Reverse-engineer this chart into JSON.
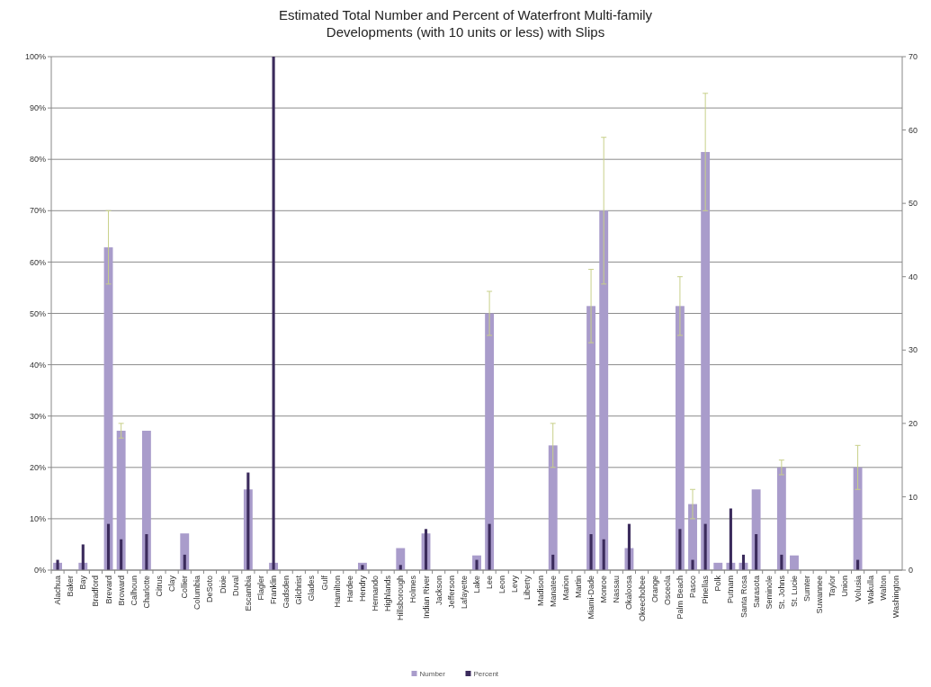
{
  "chart_data": {
    "type": "bar",
    "title": "Estimated Total Number and Percent of Waterfront Multi-family Developments (with 10 units or less) with Slips",
    "categories": [
      "Alachua",
      "Baker",
      "Bay",
      "Bradford",
      "Brevard",
      "Broward",
      "Calhoun",
      "Charlotte",
      "Citrus",
      "Clay",
      "Collier",
      "Columbia",
      "DeSoto",
      "Dixie",
      "Duval",
      "Escambia",
      "Flagler",
      "Franklin",
      "Gadsden",
      "Gilchrist",
      "Glades",
      "Gulf",
      "Hamilton",
      "Hardee",
      "Hendry",
      "Hernando",
      "Highlands",
      "Hillsborough",
      "Holmes",
      "Indian River",
      "Jackson",
      "Jefferson",
      "Lafayette",
      "Lake",
      "Lee",
      "Leon",
      "Levy",
      "Liberty",
      "Madison",
      "Manatee",
      "Marion",
      "Martin",
      "Miami-Dade",
      "Monroe",
      "Nassau",
      "Okaloosa",
      "Okeechobee",
      "Orange",
      "Osceola",
      "Palm Beach",
      "Pasco",
      "Pinellas",
      "Polk",
      "Putnam",
      "Santa Rosa",
      "Sarasota",
      "Seminole",
      "St. Johns",
      "St. Lucie",
      "Sumter",
      "Suwannee",
      "Taylor",
      "Union",
      "Volusia",
      "Wakulla",
      "Walton",
      "Washington"
    ],
    "series": [
      {
        "name": "Number",
        "color": "#a99ccb",
        "axis": "y2",
        "values": [
          1,
          0,
          1,
          0,
          44,
          19,
          0,
          19,
          0,
          0,
          5,
          0,
          0,
          0,
          0,
          11,
          0,
          1,
          0,
          0,
          0,
          0,
          0,
          0,
          1,
          0,
          0,
          3,
          0,
          5,
          0,
          0,
          0,
          2,
          35,
          0,
          0,
          0,
          0,
          17,
          0,
          0,
          36,
          49,
          0,
          3,
          0,
          0,
          0,
          36,
          9,
          57,
          1,
          1,
          1,
          11,
          0,
          14,
          2,
          0,
          0,
          0,
          0,
          14,
          0,
          0,
          0
        ],
        "errors": [
          null,
          null,
          null,
          null,
          5,
          1,
          null,
          null,
          null,
          null,
          null,
          null,
          null,
          null,
          null,
          null,
          null,
          null,
          null,
          null,
          null,
          null,
          null,
          null,
          null,
          null,
          null,
          null,
          null,
          null,
          null,
          null,
          null,
          null,
          3,
          null,
          null,
          null,
          null,
          3,
          null,
          null,
          5,
          10,
          null,
          null,
          null,
          null,
          null,
          4,
          2,
          8,
          null,
          null,
          null,
          null,
          null,
          1,
          null,
          null,
          null,
          null,
          null,
          3,
          null,
          null,
          null
        ]
      },
      {
        "name": "Percent",
        "color": "#3b2b5c",
        "axis": "y",
        "values": [
          2,
          0,
          5,
          0,
          9,
          6,
          0,
          7,
          0,
          0,
          3,
          0,
          0,
          0,
          0,
          19,
          0,
          100,
          0,
          0,
          0,
          0,
          0,
          0,
          1,
          0,
          0,
          1,
          0,
          8,
          0,
          0,
          0,
          2,
          9,
          0,
          0,
          0,
          0,
          3,
          0,
          0,
          7,
          6,
          0,
          9,
          0,
          0,
          0,
          8,
          2,
          9,
          0,
          12,
          3,
          7,
          0,
          3,
          0,
          0,
          0,
          0,
          0,
          2,
          0,
          0,
          0
        ]
      }
    ],
    "ylim": [
      0,
      100
    ],
    "yticks": [
      {
        "value": 0,
        "label": "0%"
      },
      {
        "value": 10,
        "label": "10%"
      },
      {
        "value": 20,
        "label": "20%"
      },
      {
        "value": 30,
        "label": "30%"
      },
      {
        "value": 40,
        "label": "40%"
      },
      {
        "value": 50,
        "label": "50%"
      },
      {
        "value": 60,
        "label": "60%"
      },
      {
        "value": 70,
        "label": "70%"
      },
      {
        "value": 80,
        "label": "80%"
      },
      {
        "value": 90,
        "label": "90%"
      },
      {
        "value": 100,
        "label": "100%"
      }
    ],
    "y2lim": [
      0,
      70
    ],
    "y2ticks": [
      0,
      10,
      20,
      30,
      40,
      50,
      60,
      70
    ],
    "grid": "y",
    "legend": "bottom"
  }
}
